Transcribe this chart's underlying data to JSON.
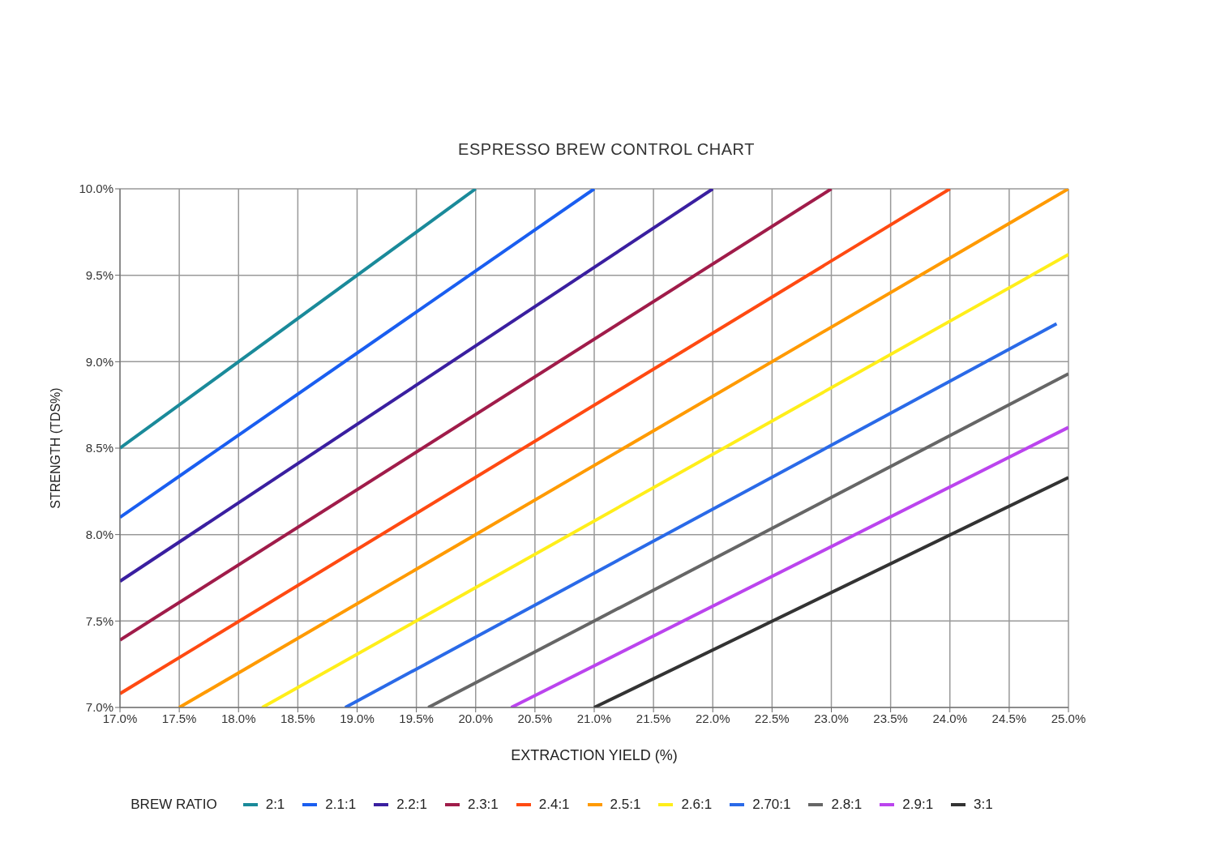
{
  "chart_data": {
    "type": "line",
    "title": "ESPRESSO BREW CONTROL CHART",
    "xlabel": "EXTRACTION YIELD (%)",
    "ylabel": "STRENGTH (TDS%)",
    "legend_title": "BREW RATIO",
    "legend": "bottom",
    "grid": true,
    "marker": "none",
    "line_style": "solid",
    "xlim": [
      17,
      25
    ],
    "ylim": [
      7,
      10
    ],
    "xticks": [
      {
        "value": 17,
        "label": "17.0%"
      },
      {
        "value": 17.5,
        "label": "17.5%"
      },
      {
        "value": 18,
        "label": "18.0%"
      },
      {
        "value": 18.5,
        "label": "18.5%"
      },
      {
        "value": 19,
        "label": "19.0%"
      },
      {
        "value": 19.5,
        "label": "19.5%"
      },
      {
        "value": 20,
        "label": "20.0%"
      },
      {
        "value": 20.5,
        "label": "20.5%"
      },
      {
        "value": 21,
        "label": "21.0%"
      },
      {
        "value": 21.5,
        "label": "21.5%"
      },
      {
        "value": 22,
        "label": "22.0%"
      },
      {
        "value": 22.5,
        "label": "22.5%"
      },
      {
        "value": 23,
        "label": "23.0%"
      },
      {
        "value": 23.5,
        "label": "23.5%"
      },
      {
        "value": 24,
        "label": "24.0%"
      },
      {
        "value": 24.5,
        "label": "24.5%"
      },
      {
        "value": 25,
        "label": "25.0%"
      }
    ],
    "yticks": [
      {
        "value": 7,
        "label": "7.0%"
      },
      {
        "value": 7.5,
        "label": "7.5%"
      },
      {
        "value": 8,
        "label": "8.0%"
      },
      {
        "value": 8.5,
        "label": "8.5%"
      },
      {
        "value": 9,
        "label": "9.0%"
      },
      {
        "value": 9.5,
        "label": "9.5%"
      },
      {
        "value": 10,
        "label": "10.0%"
      }
    ],
    "series": [
      {
        "name": "2:1",
        "color": "#1a8a9a",
        "x": [
          17,
          20
        ],
        "values": [
          8.5,
          10
        ]
      },
      {
        "name": "2.1:1",
        "color": "#1a5ef0",
        "x": [
          17,
          21
        ],
        "values": [
          8.1,
          10
        ]
      },
      {
        "name": "2.2:1",
        "color": "#3a1fa0",
        "x": [
          17,
          22
        ],
        "values": [
          7.73,
          10
        ]
      },
      {
        "name": "2.3:1",
        "color": "#a01c4a",
        "x": [
          17,
          23
        ],
        "values": [
          7.39,
          10
        ]
      },
      {
        "name": "2.4:1",
        "color": "#ff4a12",
        "x": [
          17,
          24
        ],
        "values": [
          7.08,
          10
        ]
      },
      {
        "name": "2.5:1",
        "color": "#ff9a00",
        "x": [
          17.5,
          25
        ],
        "values": [
          7,
          10
        ]
      },
      {
        "name": "2.6:1",
        "color": "#ffee1a",
        "x": [
          18.2,
          25
        ],
        "values": [
          7,
          9.62
        ]
      },
      {
        "name": "2.70:1",
        "color": "#2a6ae8",
        "x": [
          18.9,
          24.9
        ],
        "values": [
          7,
          9.22
        ]
      },
      {
        "name": "2.8:1",
        "color": "#666666",
        "x": [
          19.6,
          25
        ],
        "values": [
          7,
          8.93
        ]
      },
      {
        "name": "2.9:1",
        "color": "#bb44ee",
        "x": [
          20.3,
          25
        ],
        "values": [
          7,
          8.62
        ]
      },
      {
        "name": "3:1",
        "color": "#333333",
        "x": [
          21,
          25
        ],
        "values": [
          7,
          8.33
        ]
      }
    ]
  }
}
